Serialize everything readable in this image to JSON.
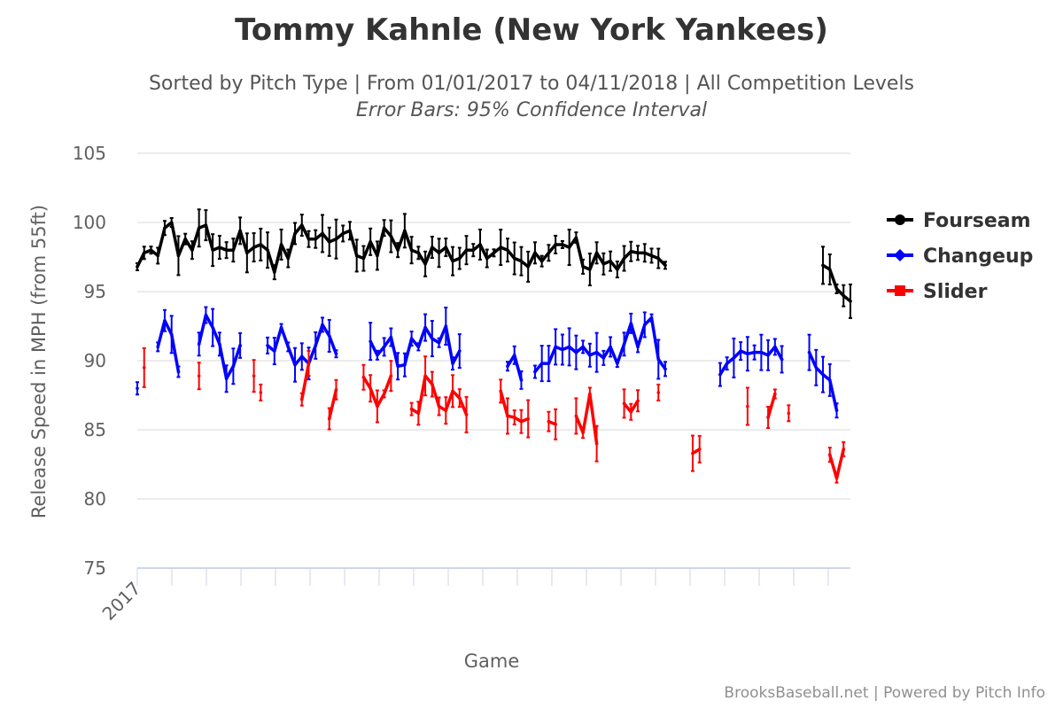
{
  "title": "Tommy Kahnle (New York Yankees)",
  "subtitle": "Sorted by Pitch Type | From 01/01/2017 to 04/11/2018 | All Competition Levels",
  "subtitle2": "Error Bars: 95% Confidence Interval",
  "credits": "BrooksBaseball.net | Powered by Pitch Info",
  "chart_data": {
    "type": "line",
    "title": "Tommy Kahnle (New York Yankees)",
    "xlabel": "Game",
    "ylabel": "Release Speed in MPH (from 55ft)",
    "x_tick_labels": [
      "2017"
    ],
    "x_game_count": 105,
    "ylim": [
      75,
      105
    ],
    "y_ticks": [
      75,
      80,
      85,
      90,
      95,
      100,
      105
    ],
    "grid": true,
    "legend_position": "right",
    "series": [
      {
        "name": "Fourseam",
        "color": "#000000",
        "marker": "circle",
        "values": [
          [
            96.8,
            97.8,
            98.0,
            97.6,
            99.6,
            100.0,
            97.6,
            98.8,
            98.0,
            99.6,
            99.8,
            98.0,
            98.2,
            98.0,
            98.0,
            99.4,
            97.8,
            98.2,
            98.4,
            98.0,
            96.4,
            98.4,
            97.4,
            99.2,
            99.8,
            98.8,
            98.8,
            99.2,
            98.6,
            98.8,
            99.2,
            99.4,
            97.6,
            97.4,
            98.6,
            97.6,
            99.6,
            99.0,
            98.0,
            99.4,
            98.0,
            97.8,
            97.0,
            98.2,
            97.8,
            98.2,
            97.2,
            97.4,
            98.0,
            98.0,
            98.4,
            97.4,
            97.8,
            98.2,
            98.0,
            97.4,
            97.2,
            96.8,
            97.8,
            97.2,
            97.8,
            98.4,
            98.4,
            98.2,
            98.9,
            96.8,
            96.6,
            97.8,
            97.0,
            97.2,
            96.6,
            97.4,
            97.9,
            97.8,
            97.8,
            97.6,
            97.4,
            96.9
          ],
          [
            96.9,
            96.6,
            95.2,
            94.7,
            94.3
          ]
        ]
      },
      {
        "name": "Changeup",
        "color": "#0000ff",
        "marker": "diamond",
        "values": [
          [
            88.0
          ],
          [
            91.0,
            92.9,
            91.9,
            89.2
          ],
          [
            91.2,
            93.3,
            92.4,
            91.2,
            88.7,
            89.6,
            91.1
          ],
          [
            91.1,
            90.7,
            92.4,
            91.0,
            89.7,
            90.3,
            89.8,
            91.1,
            92.6,
            91.8,
            90.5
          ],
          [
            91.4,
            90.4,
            91.0,
            91.7,
            89.6,
            89.7,
            91.6,
            91.0,
            92.4,
            91.6,
            91.3,
            92.5,
            89.8,
            90.7
          ],
          [
            89.6,
            90.4,
            88.6
          ],
          [
            89.2,
            89.8,
            89.8,
            91.0,
            90.8,
            91.0,
            90.6,
            91.0,
            90.4,
            90.6,
            90.2,
            91.0,
            89.8,
            91.2,
            92.7,
            91.0,
            92.6,
            93.1,
            90.1,
            89.4
          ],
          [
            89.0,
            89.8,
            90.2,
            90.7,
            90.5,
            90.6,
            90.6,
            90.4,
            91.0,
            90.1
          ],
          [
            90.6,
            89.5,
            89.0,
            88.6,
            86.4
          ]
        ]
      },
      {
        "name": "Slider",
        "color": "#ff0000",
        "marker": "square",
        "values": [
          [
            89.5
          ],
          [
            88.9
          ],
          [
            87.7
          ],
          [
            88.9
          ],
          [
            87.2,
            89.8
          ],
          [
            85.8,
            87.9
          ],
          [
            88.8,
            88.0,
            86.7,
            87.6,
            88.9
          ],
          [
            86.5,
            86.2,
            88.9,
            88.3,
            86.7,
            86.4,
            87.8,
            87.3,
            86.1
          ],
          [
            87.8,
            86.0,
            85.9,
            85.6,
            85.8
          ],
          [
            85.6,
            85.4
          ],
          [
            86.0,
            84.8,
            87.6,
            84.0
          ],
          [
            86.9,
            86.3,
            87.1
          ],
          [
            87.7
          ],
          [
            83.3,
            83.6
          ],
          [
            86.7
          ],
          [
            85.9,
            87.6
          ],
          [
            86.2
          ],
          [
            83.2,
            81.5,
            83.6
          ]
        ]
      }
    ]
  }
}
